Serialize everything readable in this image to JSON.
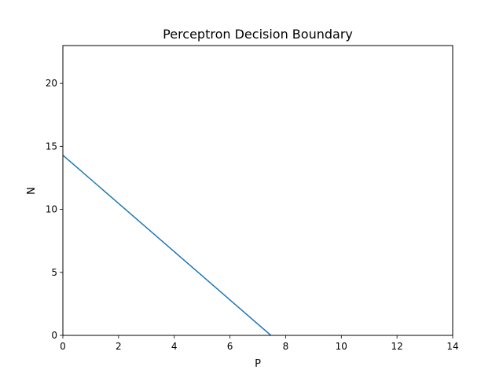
{
  "chart_data": {
    "type": "line",
    "title": "Perceptron Decision Boundary",
    "xlabel": "P",
    "ylabel": "N",
    "xlim": [
      0,
      14
    ],
    "ylim": [
      0,
      23
    ],
    "xticks": [
      0,
      2,
      4,
      6,
      8,
      10,
      12,
      14
    ],
    "yticks": [
      0,
      5,
      10,
      15,
      20
    ],
    "grid": false,
    "series": [
      {
        "color": "#1f77b4",
        "x": [
          0,
          7.47
        ],
        "y": [
          14.3,
          0
        ]
      }
    ]
  }
}
